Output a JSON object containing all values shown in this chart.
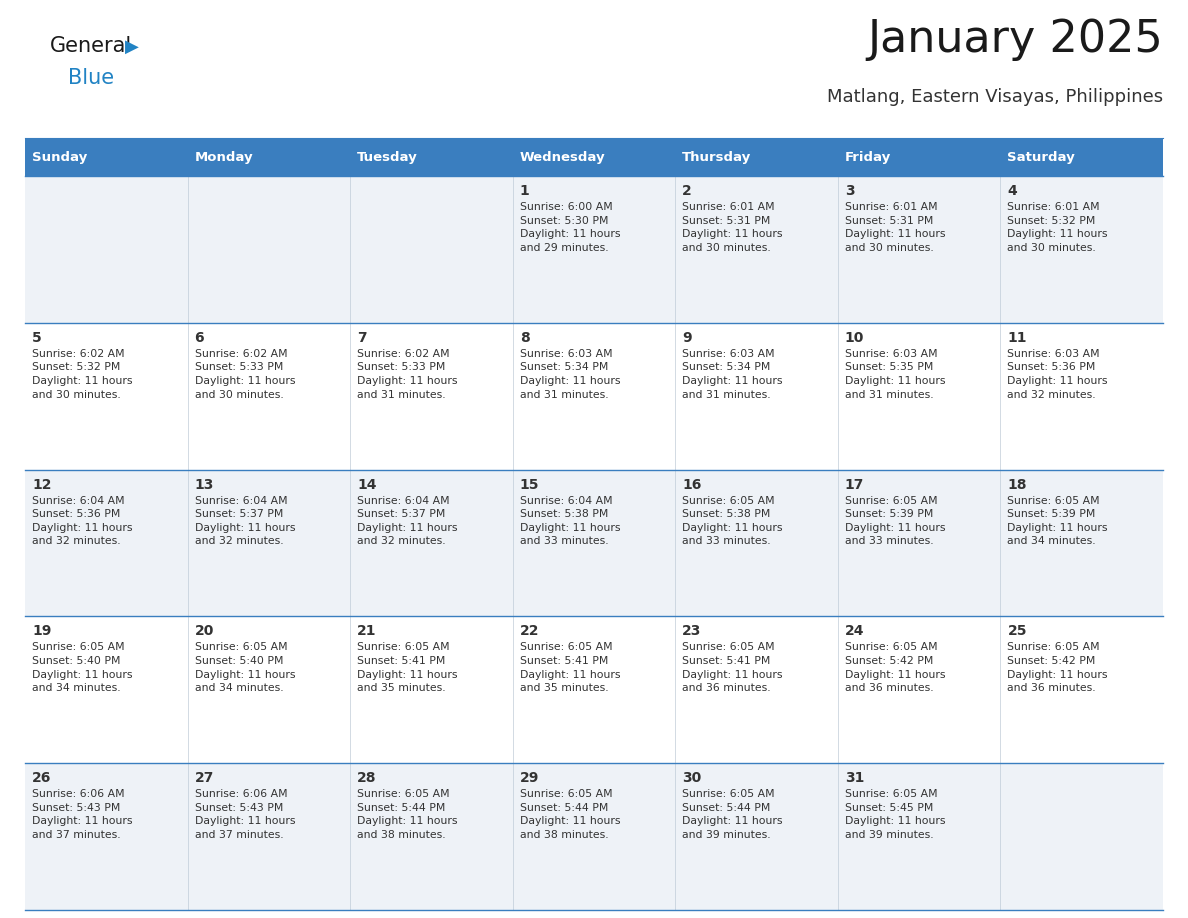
{
  "title": "January 2025",
  "subtitle": "Matlang, Eastern Visayas, Philippines",
  "header_bg": "#3a7ebf",
  "header_text": "#ffffff",
  "row_bg_even": "#eef2f7",
  "row_bg_odd": "#ffffff",
  "divider_color": "#3a7ebf",
  "days_of_week": [
    "Sunday",
    "Monday",
    "Tuesday",
    "Wednesday",
    "Thursday",
    "Friday",
    "Saturday"
  ],
  "calendar_data": [
    [
      {
        "day": "",
        "info": ""
      },
      {
        "day": "",
        "info": ""
      },
      {
        "day": "",
        "info": ""
      },
      {
        "day": "1",
        "info": "Sunrise: 6:00 AM\nSunset: 5:30 PM\nDaylight: 11 hours\nand 29 minutes."
      },
      {
        "day": "2",
        "info": "Sunrise: 6:01 AM\nSunset: 5:31 PM\nDaylight: 11 hours\nand 30 minutes."
      },
      {
        "day": "3",
        "info": "Sunrise: 6:01 AM\nSunset: 5:31 PM\nDaylight: 11 hours\nand 30 minutes."
      },
      {
        "day": "4",
        "info": "Sunrise: 6:01 AM\nSunset: 5:32 PM\nDaylight: 11 hours\nand 30 minutes."
      }
    ],
    [
      {
        "day": "5",
        "info": "Sunrise: 6:02 AM\nSunset: 5:32 PM\nDaylight: 11 hours\nand 30 minutes."
      },
      {
        "day": "6",
        "info": "Sunrise: 6:02 AM\nSunset: 5:33 PM\nDaylight: 11 hours\nand 30 minutes."
      },
      {
        "day": "7",
        "info": "Sunrise: 6:02 AM\nSunset: 5:33 PM\nDaylight: 11 hours\nand 31 minutes."
      },
      {
        "day": "8",
        "info": "Sunrise: 6:03 AM\nSunset: 5:34 PM\nDaylight: 11 hours\nand 31 minutes."
      },
      {
        "day": "9",
        "info": "Sunrise: 6:03 AM\nSunset: 5:34 PM\nDaylight: 11 hours\nand 31 minutes."
      },
      {
        "day": "10",
        "info": "Sunrise: 6:03 AM\nSunset: 5:35 PM\nDaylight: 11 hours\nand 31 minutes."
      },
      {
        "day": "11",
        "info": "Sunrise: 6:03 AM\nSunset: 5:36 PM\nDaylight: 11 hours\nand 32 minutes."
      }
    ],
    [
      {
        "day": "12",
        "info": "Sunrise: 6:04 AM\nSunset: 5:36 PM\nDaylight: 11 hours\nand 32 minutes."
      },
      {
        "day": "13",
        "info": "Sunrise: 6:04 AM\nSunset: 5:37 PM\nDaylight: 11 hours\nand 32 minutes."
      },
      {
        "day": "14",
        "info": "Sunrise: 6:04 AM\nSunset: 5:37 PM\nDaylight: 11 hours\nand 32 minutes."
      },
      {
        "day": "15",
        "info": "Sunrise: 6:04 AM\nSunset: 5:38 PM\nDaylight: 11 hours\nand 33 minutes."
      },
      {
        "day": "16",
        "info": "Sunrise: 6:05 AM\nSunset: 5:38 PM\nDaylight: 11 hours\nand 33 minutes."
      },
      {
        "day": "17",
        "info": "Sunrise: 6:05 AM\nSunset: 5:39 PM\nDaylight: 11 hours\nand 33 minutes."
      },
      {
        "day": "18",
        "info": "Sunrise: 6:05 AM\nSunset: 5:39 PM\nDaylight: 11 hours\nand 34 minutes."
      }
    ],
    [
      {
        "day": "19",
        "info": "Sunrise: 6:05 AM\nSunset: 5:40 PM\nDaylight: 11 hours\nand 34 minutes."
      },
      {
        "day": "20",
        "info": "Sunrise: 6:05 AM\nSunset: 5:40 PM\nDaylight: 11 hours\nand 34 minutes."
      },
      {
        "day": "21",
        "info": "Sunrise: 6:05 AM\nSunset: 5:41 PM\nDaylight: 11 hours\nand 35 minutes."
      },
      {
        "day": "22",
        "info": "Sunrise: 6:05 AM\nSunset: 5:41 PM\nDaylight: 11 hours\nand 35 minutes."
      },
      {
        "day": "23",
        "info": "Sunrise: 6:05 AM\nSunset: 5:41 PM\nDaylight: 11 hours\nand 36 minutes."
      },
      {
        "day": "24",
        "info": "Sunrise: 6:05 AM\nSunset: 5:42 PM\nDaylight: 11 hours\nand 36 minutes."
      },
      {
        "day": "25",
        "info": "Sunrise: 6:05 AM\nSunset: 5:42 PM\nDaylight: 11 hours\nand 36 minutes."
      }
    ],
    [
      {
        "day": "26",
        "info": "Sunrise: 6:06 AM\nSunset: 5:43 PM\nDaylight: 11 hours\nand 37 minutes."
      },
      {
        "day": "27",
        "info": "Sunrise: 6:06 AM\nSunset: 5:43 PM\nDaylight: 11 hours\nand 37 minutes."
      },
      {
        "day": "28",
        "info": "Sunrise: 6:05 AM\nSunset: 5:44 PM\nDaylight: 11 hours\nand 38 minutes."
      },
      {
        "day": "29",
        "info": "Sunrise: 6:05 AM\nSunset: 5:44 PM\nDaylight: 11 hours\nand 38 minutes."
      },
      {
        "day": "30",
        "info": "Sunrise: 6:05 AM\nSunset: 5:44 PM\nDaylight: 11 hours\nand 39 minutes."
      },
      {
        "day": "31",
        "info": "Sunrise: 6:05 AM\nSunset: 5:45 PM\nDaylight: 11 hours\nand 39 minutes."
      },
      {
        "day": "",
        "info": ""
      }
    ]
  ],
  "logo_general_color": "#1a1a1a",
  "logo_blue_color": "#2183c4",
  "text_color": "#333333",
  "title_color": "#1a1a1a",
  "subtitle_color": "#333333",
  "figwidth": 11.88,
  "figheight": 9.18,
  "dpi": 100
}
